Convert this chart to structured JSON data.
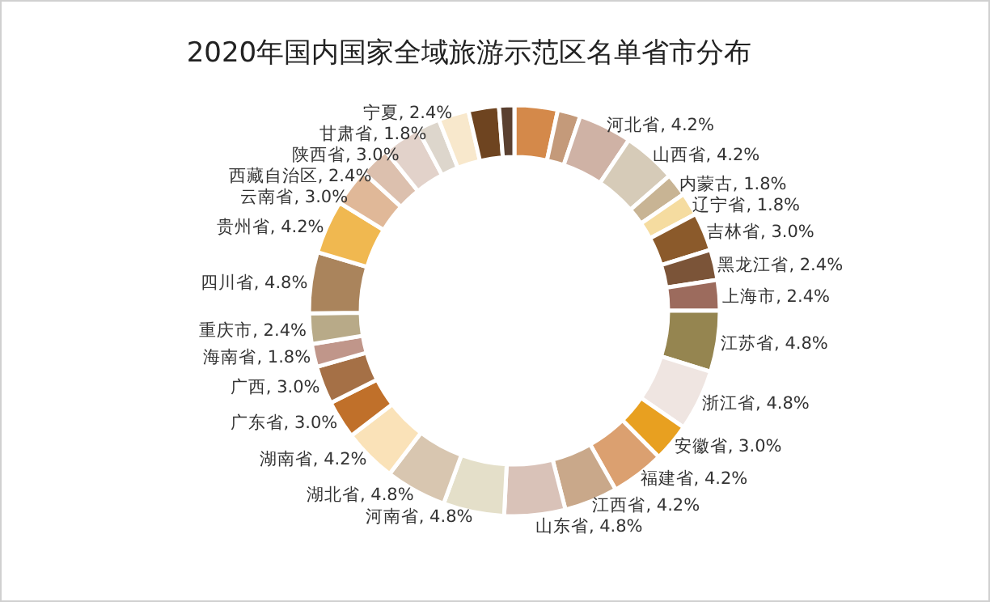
{
  "chart_data": {
    "type": "donut",
    "title": "2020年国内国家全域旅游示范区名单省市分布",
    "categories": [
      null,
      null,
      "河北省",
      "山西省",
      "内蒙古",
      "辽宁省",
      "吉林省",
      "黑龙江省",
      "上海市",
      "江苏省",
      "浙江省",
      "安徽省",
      "福建省",
      "江西省",
      "山东省",
      "河南省",
      "湖北省",
      "湖南省",
      "广东省",
      "广西",
      "海南省",
      "重庆市",
      "四川省",
      "贵州省",
      "云南省",
      "西藏自治区",
      "陕西省",
      "甘肃省",
      "宁夏",
      null,
      null
    ],
    "values": [
      3.4,
      1.8,
      4.2,
      4.2,
      1.8,
      1.8,
      3.0,
      2.4,
      2.4,
      4.8,
      4.8,
      3.0,
      4.2,
      4.2,
      4.8,
      4.8,
      4.8,
      4.2,
      3.0,
      3.0,
      1.8,
      2.4,
      4.8,
      4.2,
      3.0,
      2.4,
      3.0,
      1.8,
      2.4,
      2.4,
      1.2
    ],
    "value_labels": [
      null,
      null,
      "4.2%",
      "4.2%",
      "1.8%",
      "1.8%",
      "3.0%",
      "2.4%",
      "2.4%",
      "4.8%",
      "4.8%",
      "3.0%",
      "4.2%",
      "4.2%",
      "4.8%",
      "4.8%",
      "4.8%",
      "4.2%",
      "3.0%",
      "3.0%",
      "1.8%",
      "2.4%",
      "4.8%",
      "4.2%",
      "3.0%",
      "2.4%",
      "3.0%",
      "1.8%",
      "2.4%",
      null,
      null
    ],
    "colors": [
      "#d4894a",
      "#c49a7a",
      "#cfb2a5",
      "#d6cbb8",
      "#c8b494",
      "#f5dca0",
      "#8b5a2b",
      "#7b5438",
      "#9c6b5d",
      "#958550",
      "#efe5e1",
      "#e8a020",
      "#dba070",
      "#c9a88a",
      "#d9c2b8",
      "#e4dfc9",
      "#d8c6b0",
      "#fae2b8",
      "#c0702a",
      "#a57046",
      "#c0968a",
      "#b8aa88",
      "#aa845c",
      "#f0b850",
      "#e0b898",
      "#dcc0ae",
      "#e2d2ca",
      "#ddd6cc",
      "#f8e8cc",
      "#6e4420",
      "#5a4030"
    ]
  }
}
